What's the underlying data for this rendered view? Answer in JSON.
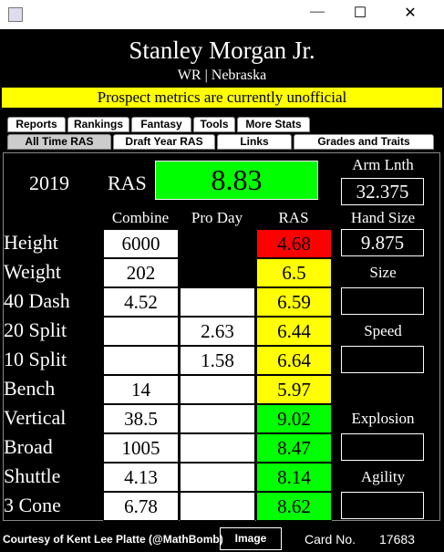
{
  "window": {
    "controls": {
      "minimize": "—",
      "maximize": "☐",
      "close": "✕"
    }
  },
  "header": {
    "name": "Stanley Morgan Jr.",
    "position_school": "WR | Nebraska",
    "banner": "Prospect metrics are currently unofficial"
  },
  "tabs": {
    "row1": [
      "Reports",
      "Rankings",
      "Fantasy",
      "Tools",
      "More Stats"
    ],
    "row2": [
      "All Time RAS",
      "Draft Year RAS",
      "Links",
      "Grades and Traits"
    ],
    "selected": "All Time RAS"
  },
  "summary": {
    "year": "2019",
    "ras_label": "RAS",
    "ras": "8.83",
    "ras_color": "#00ff00",
    "arm_length_label": "Arm Lnth",
    "arm_length": "32.375",
    "hand_size_label": "Hand Size",
    "hand_size": "9.875"
  },
  "columns": [
    "Combine",
    "Pro Day",
    "RAS"
  ],
  "rows": [
    {
      "label": "Height",
      "combine": "6000",
      "pro_day": null,
      "pro_day_color": "#000000",
      "ras": "4.68",
      "ras_color": "#ff0000"
    },
    {
      "label": "Weight",
      "combine": "202",
      "pro_day": null,
      "pro_day_color": "#000000",
      "ras": "6.5",
      "ras_color": "#ffff00"
    },
    {
      "label": "40 Dash",
      "combine": "4.52",
      "pro_day": null,
      "pro_day_color": "#ffffff",
      "ras": "6.59",
      "ras_color": "#ffff00"
    },
    {
      "label": "20 Split",
      "combine": null,
      "pro_day": "2.63",
      "pro_day_color": "#ffffff",
      "ras": "6.44",
      "ras_color": "#ffff00"
    },
    {
      "label": "10 Split",
      "combine": null,
      "pro_day": "1.58",
      "pro_day_color": "#ffffff",
      "ras": "6.64",
      "ras_color": "#ffff00"
    },
    {
      "label": "Bench",
      "combine": "14",
      "pro_day": null,
      "pro_day_color": "#ffffff",
      "ras": "5.97",
      "ras_color": "#ffff00"
    },
    {
      "label": "Vertical",
      "combine": "38.5",
      "pro_day": null,
      "pro_day_color": "#ffffff",
      "ras": "9.02",
      "ras_color": "#00ff00"
    },
    {
      "label": "Broad",
      "combine": "1005",
      "pro_day": null,
      "pro_day_color": "#ffffff",
      "ras": "8.47",
      "ras_color": "#00ff00"
    },
    {
      "label": "Shuttle",
      "combine": "4.13",
      "pro_day": null,
      "pro_day_color": "#ffffff",
      "ras": "8.14",
      "ras_color": "#00ff00"
    },
    {
      "label": "3 Cone",
      "combine": "6.78",
      "pro_day": null,
      "pro_day_color": "#ffffff",
      "ras": "8.62",
      "ras_color": "#00ff00"
    }
  ],
  "grades": [
    "Size",
    "Speed",
    "Explosion",
    "Agility"
  ],
  "footer": {
    "credit": "Courtesy of Kent Lee Platte (@MathBomb)",
    "button": "Image",
    "card_label": "Card No.",
    "card_number": "17683"
  }
}
